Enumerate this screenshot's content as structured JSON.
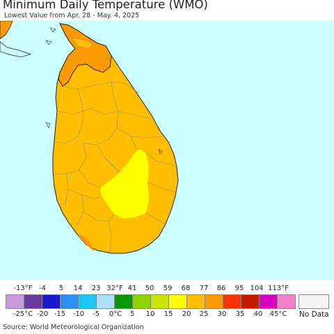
{
  "header": {
    "title": "Minimum Daily Temperature (WMO)",
    "subtitle": "Lowest Value from Apr. 28 - May. 4, 2025"
  },
  "map": {
    "region": "Sri Lanka",
    "ocean_color": "#ccffff",
    "district_border_color": "#888888",
    "coast_color": "#222222",
    "zones": [
      {
        "name": "north-warm",
        "range": "25-30 °C",
        "color": "#ff9900"
      },
      {
        "name": "main-land",
        "range": "20-25 °C",
        "color": "#ffbf00"
      },
      {
        "name": "highland-cool",
        "range": "15-20 °C",
        "color": "#ffff00"
      },
      {
        "name": "south-warm",
        "range": "25-30 °C",
        "color": "#ff9900"
      }
    ]
  },
  "legend": {
    "f_ticks": [
      "-13°F",
      "-4",
      "5",
      "14",
      "23",
      "32°F",
      "41",
      "50",
      "59",
      "68",
      "77",
      "86",
      "95",
      "104",
      "113°F"
    ],
    "c_ticks": [
      "-25°C",
      "-20",
      "-15",
      "-10",
      "-5",
      "0°C",
      "5",
      "10",
      "15",
      "20",
      "25",
      "30",
      "35",
      "40",
      "45°C"
    ],
    "colors": [
      "#c79ae0",
      "#6a3b9e",
      "#1a1acc",
      "#2a8ff0",
      "#1ac6f5",
      "#aee0f5",
      "#079a07",
      "#8fd400",
      "#c9e600",
      "#ffff00",
      "#ffbf00",
      "#ff9900",
      "#ff3300",
      "#c41a00",
      "#d400c2",
      "#f080c8"
    ],
    "no_data_label": "No Data",
    "no_data_color": "#f5f5f5"
  },
  "footer": {
    "source": "Source: World Meteorological Organization"
  }
}
